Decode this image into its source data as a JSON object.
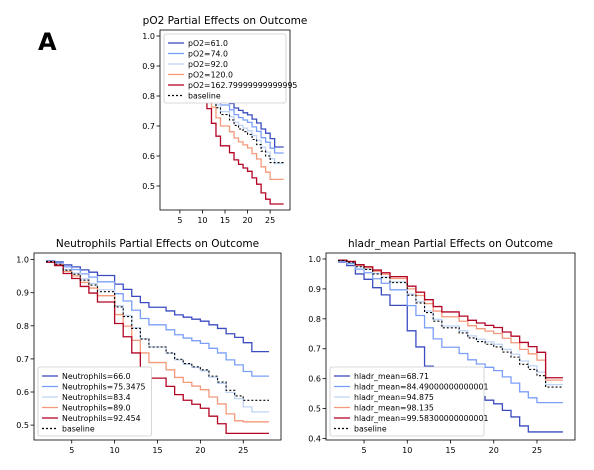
{
  "panel_label": "A",
  "chart_data": [
    {
      "type": "line",
      "title": "pO2 Partial Effects on Outcome",
      "xlabel": "",
      "ylabel": "",
      "xlim": [
        0.6,
        29.4
      ],
      "ylim": [
        0.42,
        1.02
      ],
      "xticks": [
        5,
        10,
        15,
        20,
        25
      ],
      "yticks": [
        0.5,
        0.6,
        0.7,
        0.8,
        0.9,
        1.0
      ],
      "grid": false,
      "legend": "upper-right",
      "x": [
        2,
        3,
        4,
        5,
        6,
        7,
        8,
        10,
        11,
        12,
        13,
        14,
        16,
        17,
        18,
        19,
        20,
        21,
        22,
        23,
        24,
        25,
        26,
        27,
        28
      ],
      "series": [
        {
          "name": "pO2=61.0",
          "color": "#3b4cc0",
          "dashed": false,
          "values": [
            0.995,
            0.99,
            0.975,
            0.966,
            0.952,
            0.94,
            0.926,
            0.889,
            0.865,
            0.835,
            0.809,
            0.79,
            0.775,
            0.76,
            0.752,
            0.744,
            0.737,
            0.723,
            0.71,
            0.69,
            0.676,
            0.658,
            0.63,
            0.63,
            0.63
          ]
        },
        {
          "name": "pO2=74.0",
          "color": "#7b9ff9",
          "dashed": false,
          "values": [
            0.994,
            0.988,
            0.972,
            0.962,
            0.946,
            0.933,
            0.918,
            0.877,
            0.851,
            0.819,
            0.791,
            0.77,
            0.754,
            0.738,
            0.728,
            0.72,
            0.712,
            0.697,
            0.682,
            0.661,
            0.646,
            0.626,
            0.61,
            0.61,
            0.61
          ]
        },
        {
          "name": "pO2=92.0",
          "color": "#c0d4f5",
          "dashed": false,
          "values": [
            0.994,
            0.987,
            0.969,
            0.958,
            0.941,
            0.926,
            0.909,
            0.864,
            0.836,
            0.801,
            0.77,
            0.748,
            0.731,
            0.713,
            0.702,
            0.693,
            0.684,
            0.668,
            0.652,
            0.629,
            0.613,
            0.591,
            0.575,
            0.575,
            0.575
          ]
        },
        {
          "name": "pO2=120.0",
          "color": "#f49a7b",
          "dashed": false,
          "values": [
            0.993,
            0.984,
            0.962,
            0.949,
            0.928,
            0.911,
            0.89,
            0.837,
            0.804,
            0.763,
            0.727,
            0.7,
            0.681,
            0.66,
            0.647,
            0.637,
            0.627,
            0.608,
            0.59,
            0.564,
            0.546,
            0.522,
            0.522,
            0.522,
            0.522
          ]
        },
        {
          "name": "pO2=162.79999999999995",
          "color": "#b40426",
          "dashed": false,
          "values": [
            0.992,
            0.98,
            0.952,
            0.935,
            0.91,
            0.888,
            0.863,
            0.798,
            0.758,
            0.709,
            0.666,
            0.634,
            0.611,
            0.587,
            0.572,
            0.56,
            0.549,
            0.527,
            0.506,
            0.477,
            0.456,
            0.44,
            0.44,
            0.44,
            0.44
          ]
        },
        {
          "name": "baseline",
          "color": "#000000",
          "dashed": true,
          "values": [
            0.994,
            0.986,
            0.967,
            0.955,
            0.937,
            0.922,
            0.904,
            0.857,
            0.828,
            0.792,
            0.761,
            0.738,
            0.72,
            0.702,
            0.69,
            0.681,
            0.672,
            0.655,
            0.638,
            0.616,
            0.6,
            0.578,
            0.578,
            0.578,
            0.578
          ]
        }
      ]
    },
    {
      "type": "line",
      "title": "Neutrophils Partial Effects on Outcome",
      "xlabel": "",
      "ylabel": "",
      "xlim": [
        0.6,
        29.4
      ],
      "ylim": [
        0.455,
        1.02
      ],
      "xticks": [
        5,
        10,
        15,
        20,
        25
      ],
      "yticks": [
        0.5,
        0.6,
        0.7,
        0.8,
        0.9,
        1.0
      ],
      "grid": false,
      "legend": "lower-left",
      "x": [
        2,
        3,
        4,
        5,
        6,
        7,
        8,
        10,
        11,
        12,
        13,
        14,
        16,
        17,
        18,
        19,
        20,
        21,
        22,
        23,
        24,
        25,
        26,
        27,
        28
      ],
      "series": [
        {
          "name": "Neutrophils=66.0",
          "color": "#3b4cc0",
          "dashed": false,
          "values": [
            0.996,
            0.993,
            0.984,
            0.978,
            0.969,
            0.962,
            0.952,
            0.926,
            0.91,
            0.889,
            0.87,
            0.856,
            0.845,
            0.833,
            0.826,
            0.82,
            0.814,
            0.803,
            0.792,
            0.776,
            0.765,
            0.749,
            0.722,
            0.722,
            0.722
          ]
        },
        {
          "name": "Neutrophils=75.3475",
          "color": "#7b9ff9",
          "dashed": false,
          "values": [
            0.995,
            0.99,
            0.978,
            0.97,
            0.957,
            0.947,
            0.933,
            0.897,
            0.875,
            0.847,
            0.822,
            0.803,
            0.788,
            0.773,
            0.763,
            0.755,
            0.747,
            0.732,
            0.718,
            0.697,
            0.682,
            0.662,
            0.648,
            0.648,
            0.648
          ]
        },
        {
          "name": "Neutrophils=83.4",
          "color": "#c0d4f5",
          "dashed": false,
          "values": [
            0.994,
            0.987,
            0.97,
            0.959,
            0.942,
            0.928,
            0.909,
            0.861,
            0.831,
            0.794,
            0.761,
            0.736,
            0.717,
            0.697,
            0.684,
            0.674,
            0.664,
            0.645,
            0.626,
            0.599,
            0.58,
            0.555,
            0.54,
            0.54,
            0.54
          ]
        },
        {
          "name": "Neutrophils=89.0",
          "color": "#f49a7b",
          "dashed": false,
          "values": [
            0.993,
            0.985,
            0.964,
            0.951,
            0.931,
            0.914,
            0.891,
            0.834,
            0.799,
            0.756,
            0.718,
            0.689,
            0.667,
            0.644,
            0.629,
            0.618,
            0.607,
            0.585,
            0.564,
            0.534,
            0.513,
            0.51,
            0.51,
            0.51,
            0.51
          ]
        },
        {
          "name": "Neutrophils=92.454",
          "color": "#b40426",
          "dashed": false,
          "values": [
            0.992,
            0.982,
            0.958,
            0.943,
            0.919,
            0.899,
            0.872,
            0.807,
            0.767,
            0.718,
            0.674,
            0.642,
            0.617,
            0.592,
            0.575,
            0.563,
            0.551,
            0.527,
            0.504,
            0.475,
            0.475,
            0.475,
            0.475,
            0.475,
            0.475
          ]
        },
        {
          "name": "baseline",
          "color": "#000000",
          "dashed": true,
          "values": [
            0.994,
            0.986,
            0.968,
            0.956,
            0.938,
            0.923,
            0.903,
            0.857,
            0.828,
            0.792,
            0.76,
            0.736,
            0.718,
            0.699,
            0.686,
            0.676,
            0.667,
            0.648,
            0.63,
            0.605,
            0.588,
            0.575,
            0.575,
            0.575,
            0.575
          ]
        }
      ]
    },
    {
      "type": "line",
      "title": "hladr_mean Partial Effects on Outcome",
      "xlabel": "",
      "ylabel": "",
      "xlim": [
        0.6,
        29.4
      ],
      "ylim": [
        0.395,
        1.02
      ],
      "xticks": [
        5,
        10,
        15,
        20,
        25
      ],
      "yticks": [
        0.4,
        0.5,
        0.6,
        0.7,
        0.8,
        0.9,
        1.0
      ],
      "grid": false,
      "legend": "lower-left",
      "x": [
        2,
        3,
        4,
        5,
        6,
        7,
        8,
        10,
        11,
        12,
        13,
        14,
        16,
        17,
        18,
        19,
        20,
        21,
        22,
        23,
        24,
        25,
        26,
        27,
        28
      ],
      "series": [
        {
          "name": "hladr_mean=68.71",
          "color": "#3b4cc0",
          "dashed": false,
          "values": [
            0.99,
            0.978,
            0.95,
            0.932,
            0.904,
            0.88,
            0.845,
            0.76,
            0.706,
            0.642,
            0.587,
            0.585,
            0.58,
            0.555,
            0.54,
            0.528,
            0.516,
            0.494,
            0.472,
            0.442,
            0.422,
            0.422,
            0.422,
            0.422,
            0.422
          ]
        },
        {
          "name": "hladr_mean=84.49000000000001",
          "color": "#7b9ff9",
          "dashed": false,
          "values": [
            0.993,
            0.985,
            0.966,
            0.954,
            0.934,
            0.919,
            0.897,
            0.844,
            0.811,
            0.77,
            0.733,
            0.705,
            0.684,
            0.663,
            0.649,
            0.638,
            0.627,
            0.606,
            0.585,
            0.556,
            0.536,
            0.52,
            0.52,
            0.52,
            0.52
          ]
        },
        {
          "name": "hladr_mean=94.875",
          "color": "#c0d4f5",
          "dashed": false,
          "values": [
            0.995,
            0.989,
            0.975,
            0.966,
            0.952,
            0.94,
            0.924,
            0.883,
            0.858,
            0.826,
            0.798,
            0.776,
            0.76,
            0.743,
            0.732,
            0.723,
            0.715,
            0.698,
            0.682,
            0.659,
            0.643,
            0.622,
            0.58,
            0.58,
            0.58
          ]
        },
        {
          "name": "hladr_mean=98.135",
          "color": "#f49a7b",
          "dashed": false,
          "values": [
            0.996,
            0.991,
            0.979,
            0.971,
            0.959,
            0.949,
            0.935,
            0.9,
            0.878,
            0.851,
            0.826,
            0.807,
            0.792,
            0.777,
            0.767,
            0.759,
            0.751,
            0.735,
            0.72,
            0.698,
            0.683,
            0.662,
            0.595,
            0.595,
            0.595
          ]
        },
        {
          "name": "hladr_mean=99.58300000000001",
          "color": "#b40426",
          "dashed": false,
          "values": [
            0.996,
            0.992,
            0.981,
            0.974,
            0.963,
            0.954,
            0.941,
            0.909,
            0.889,
            0.864,
            0.841,
            0.823,
            0.809,
            0.795,
            0.786,
            0.778,
            0.771,
            0.756,
            0.742,
            0.721,
            0.707,
            0.688,
            0.603,
            0.603,
            0.603
          ]
        },
        {
          "name": "baseline",
          "color": "#000000",
          "dashed": true,
          "values": [
            0.995,
            0.989,
            0.974,
            0.965,
            0.95,
            0.938,
            0.921,
            0.879,
            0.853,
            0.821,
            0.792,
            0.77,
            0.753,
            0.736,
            0.724,
            0.715,
            0.706,
            0.689,
            0.672,
            0.648,
            0.631,
            0.61,
            0.572,
            0.572,
            0.572
          ]
        }
      ]
    }
  ]
}
